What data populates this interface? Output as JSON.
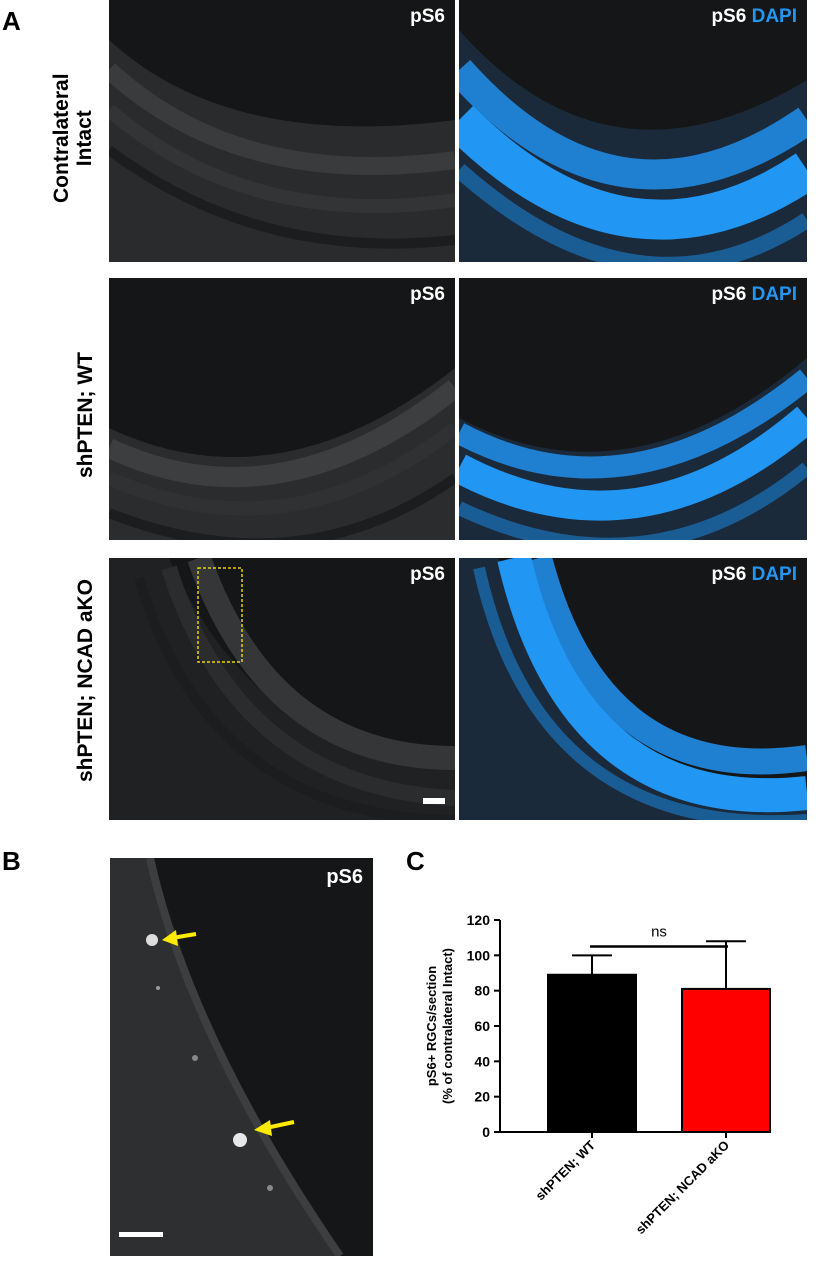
{
  "panel_a": {
    "letter": "A",
    "rows": [
      {
        "label_line1": "Contralateral",
        "label_line2": "Intact",
        "left_label": "pS6",
        "right_label_main": "pS6",
        "right_label_dapi": "DAPI"
      },
      {
        "label_line1": "shPTEN; WT",
        "label_line2": "",
        "left_label": "pS6",
        "right_label_main": "pS6",
        "right_label_dapi": "DAPI"
      },
      {
        "label_line1": "shPTEN; NCAD aKO",
        "label_line2": "",
        "left_label": "pS6",
        "right_label_main": "pS6",
        "right_label_dapi": "DAPI"
      }
    ]
  },
  "panel_b": {
    "letter": "B",
    "label": "pS6"
  },
  "panel_c": {
    "letter": "C",
    "significance": "ns"
  },
  "colors": {
    "dapi": "#2196f3",
    "bar_wt": "#000000",
    "bar_ko": "#ff0000",
    "arrow": "#ffeb00",
    "inset_box": "#e8d400"
  },
  "chart_data": {
    "type": "bar",
    "categories": [
      "shPTEN; WT",
      "shPTEN; NCAD aKO"
    ],
    "values": [
      89,
      81
    ],
    "error_upper": [
      100,
      108
    ],
    "ylabel_line1": "pS6+ RGCs/section",
    "ylabel_line2": "(% of contralateral Intact)",
    "ylim": [
      0,
      120
    ],
    "yticks": [
      0,
      20,
      40,
      60,
      80,
      100,
      120
    ],
    "xlabel": ""
  }
}
